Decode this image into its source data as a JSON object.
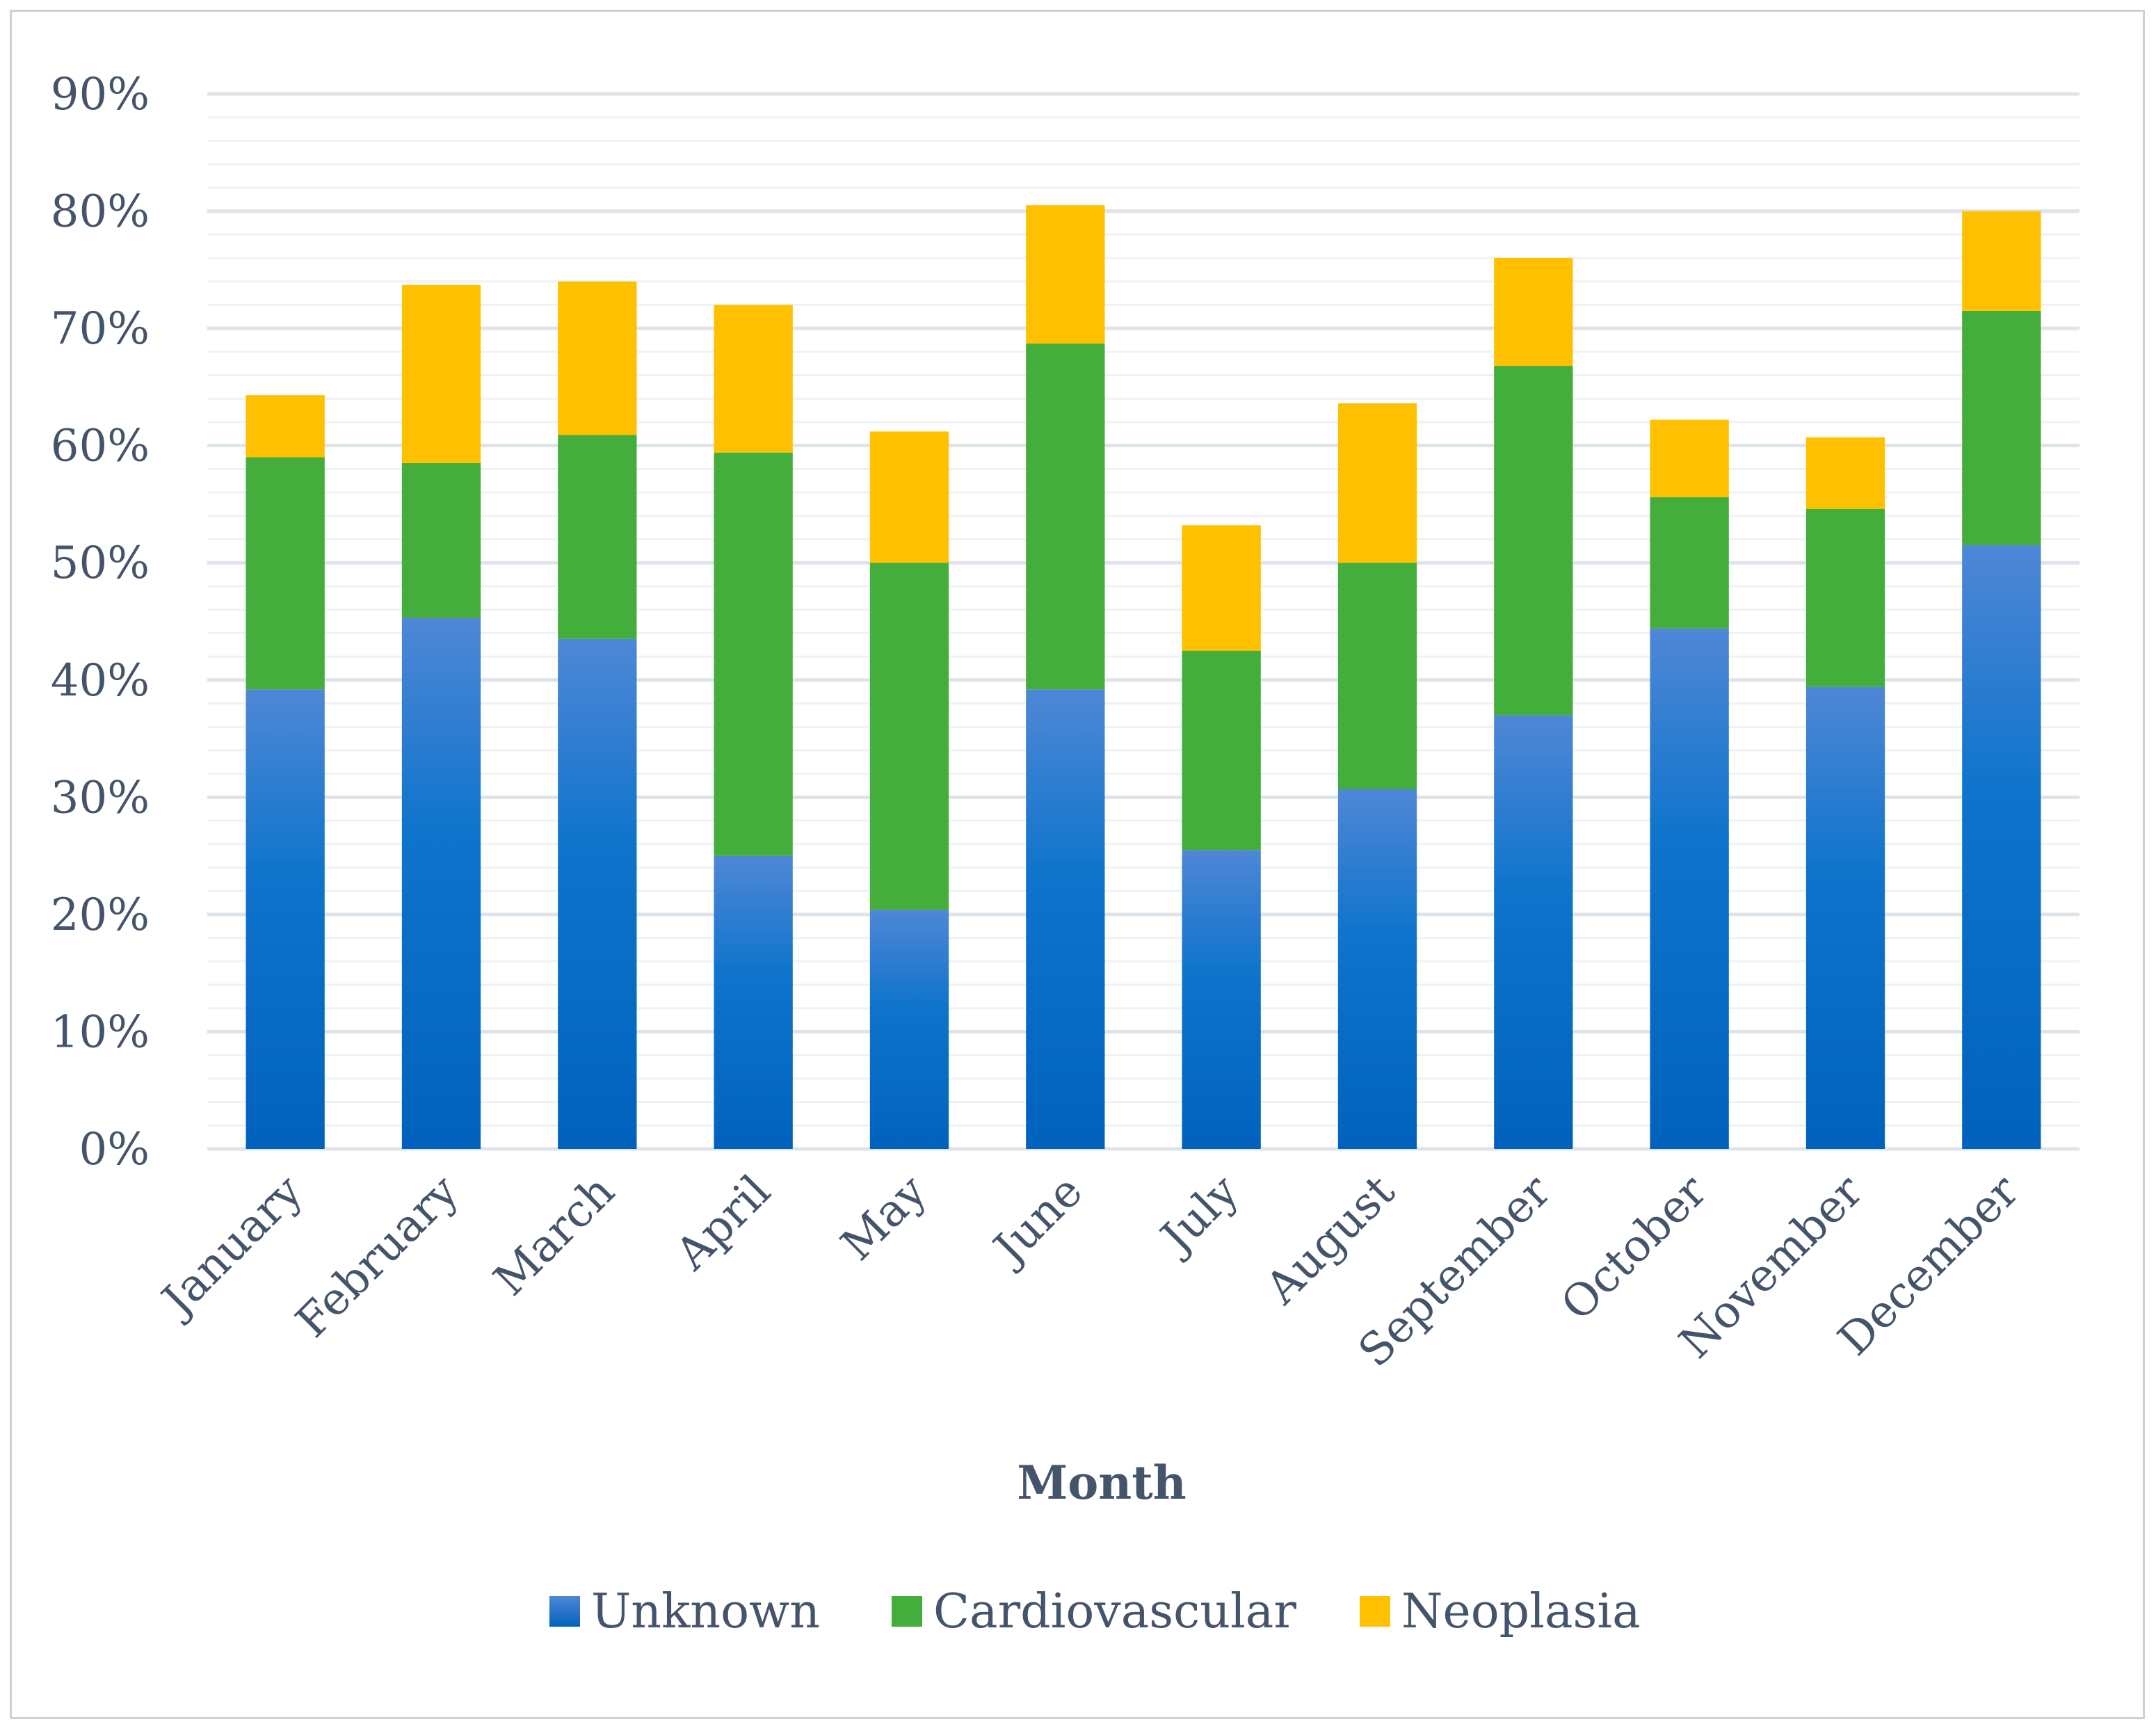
{
  "chart_data": {
    "type": "bar",
    "stacked": true,
    "title": "",
    "xlabel": "Month",
    "ylabel": "",
    "ylim": [
      0,
      90
    ],
    "y_ticks": [
      "0%",
      "10%",
      "20%",
      "30%",
      "40%",
      "50%",
      "60%",
      "70%",
      "80%",
      "90%"
    ],
    "y_tick_values": [
      0,
      10,
      20,
      30,
      40,
      50,
      60,
      70,
      80,
      90
    ],
    "grid": true,
    "legend_position": "bottom",
    "categories": [
      "January",
      "February",
      "March",
      "April",
      "May",
      "June",
      "July",
      "August",
      "September",
      "October",
      "November",
      "December"
    ],
    "series": [
      {
        "name": "Unknown",
        "color": "#0070c0",
        "values": [
          39.2,
          45.3,
          43.5,
          25.0,
          20.4,
          39.2,
          25.5,
          30.7,
          37.0,
          44.4,
          39.4,
          51.5
        ]
      },
      {
        "name": "Cardiovascular",
        "color": "#44ae3c",
        "values": [
          19.8,
          13.2,
          17.4,
          34.4,
          29.6,
          29.5,
          17.0,
          19.3,
          29.8,
          11.2,
          15.2,
          20.0
        ]
      },
      {
        "name": "Neoplasia",
        "color": "#ffc000",
        "values": [
          5.3,
          15.2,
          13.1,
          12.6,
          11.2,
          11.8,
          10.7,
          13.6,
          9.2,
          6.6,
          6.1,
          8.5
        ]
      }
    ]
  }
}
